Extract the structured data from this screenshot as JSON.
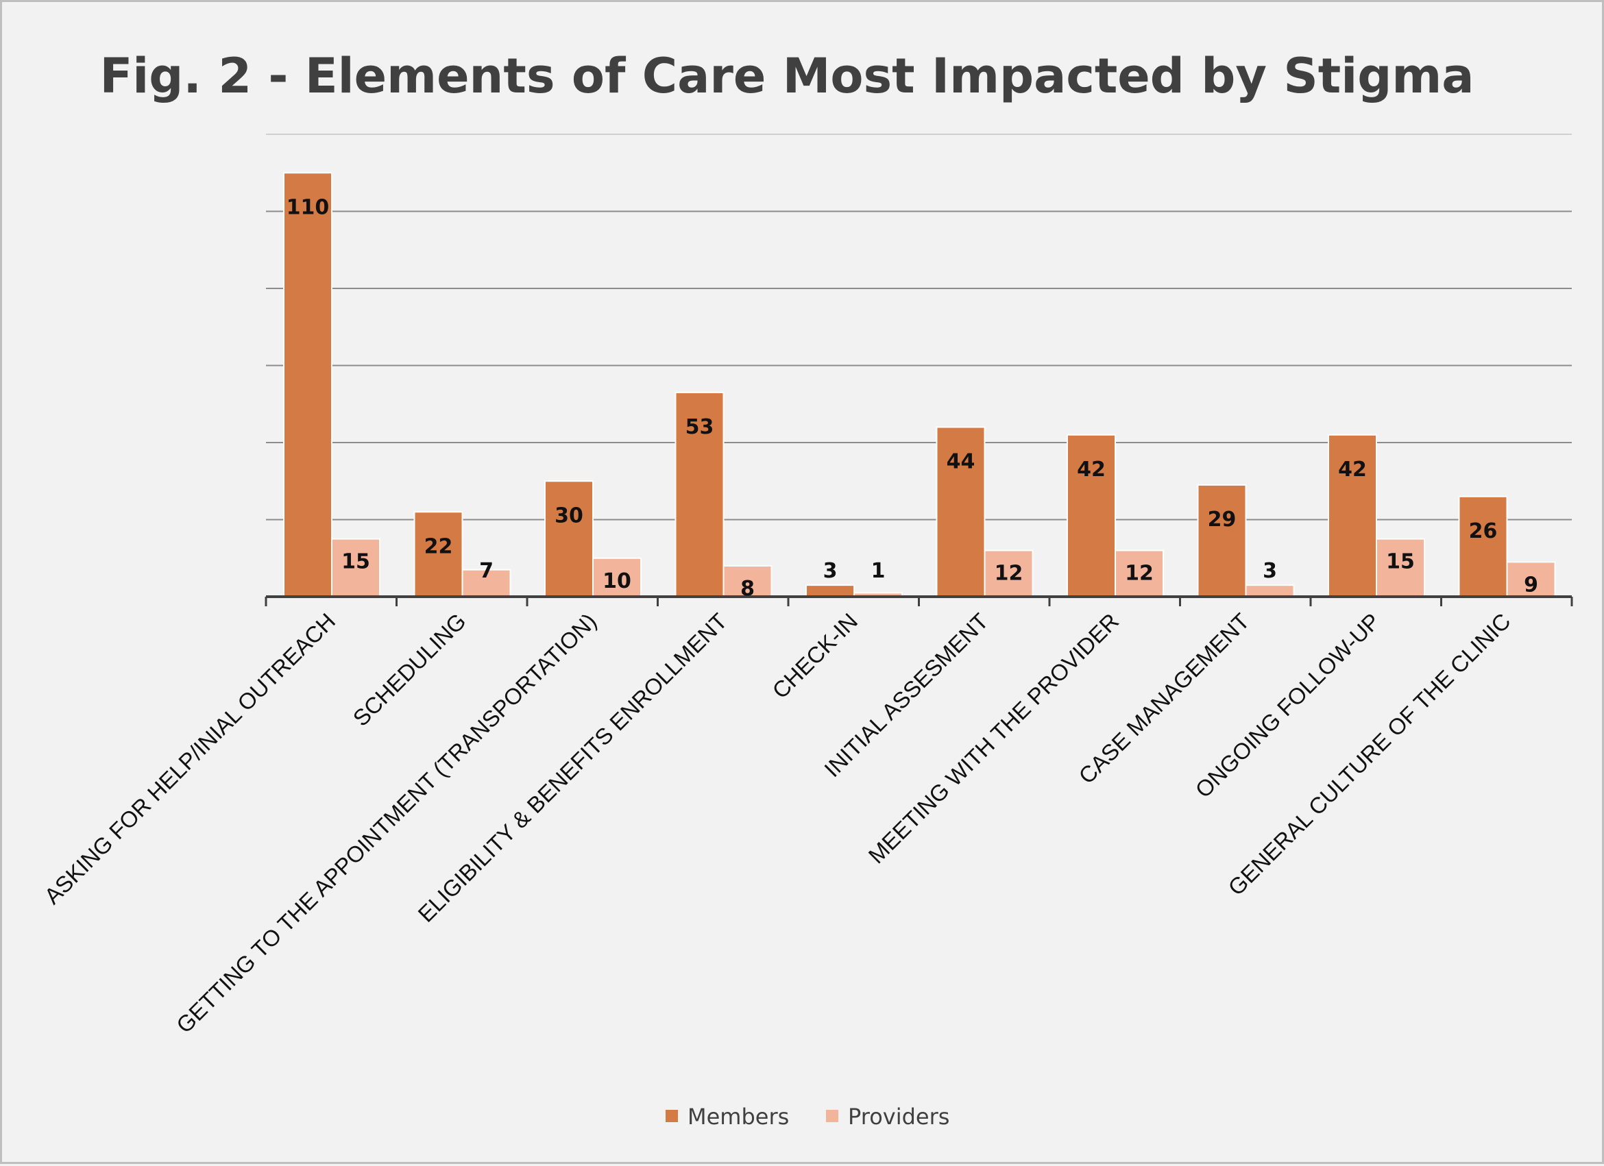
{
  "chart_data": {
    "type": "bar",
    "title": "Fig. 2 - Elements of Care Most Impacted by Stigma",
    "categories": [
      "ASKING FOR HELP/INIAL OUTREACH",
      "SCHEDULING",
      "GETTING TO THE APPOINTMENT (TRANSPORTATION)",
      "ELIGIBILITY & BENEFITS ENROLLMENT",
      "CHECK-IN",
      "INITIAL ASSESMENT",
      "MEETING WITH THE PROVIDER",
      "CASE MANAGEMENT",
      "ONGOING FOLLOW-UP",
      "GENERAL CULTURE OF THE CLINIC"
    ],
    "series": [
      {
        "name": "Members",
        "values": [
          110,
          22,
          30,
          53,
          3,
          44,
          42,
          29,
          42,
          26
        ],
        "color": "#d47a45"
      },
      {
        "name": "Providers",
        "values": [
          15,
          7,
          10,
          8,
          1,
          12,
          12,
          3,
          15,
          9
        ],
        "color": "#f2b49b"
      }
    ],
    "ylim": [
      0,
      120
    ],
    "y_gridline_step": 20,
    "y_tick_labels_shown": false,
    "grid": true,
    "legend": "bottom",
    "xlabel": "",
    "ylabel": ""
  }
}
